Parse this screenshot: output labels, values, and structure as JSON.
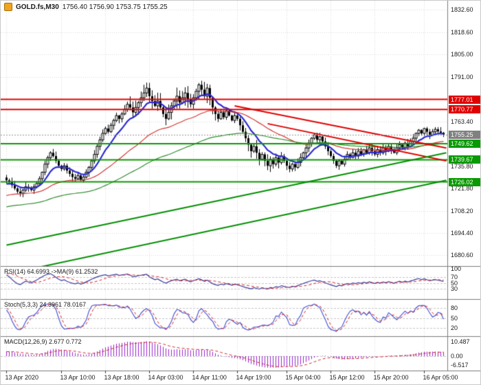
{
  "window": {
    "symbol": "GOLD.fs,M30",
    "ohlc_text": "1756.40 1756.90 1753.75 1755.25"
  },
  "chart_data": {
    "type": "candlestick",
    "title": "GOLD.fs,M30",
    "timeframe_minutes": 30,
    "current": {
      "open": 1756.4,
      "high": 1756.9,
      "low": 1753.75,
      "close": 1755.25
    },
    "layout_hints": {
      "background": "#ffffff",
      "grid": "dotted",
      "bar_spacing_px": 4,
      "legend_position": "top-left"
    },
    "price_axis": {
      "range": [
        1674,
        1838
      ],
      "ticks": [
        1832.6,
        1818.6,
        1805.0,
        1791.0,
        1763.4,
        1735.8,
        1721.8,
        1708.2,
        1694.4,
        1680.6
      ]
    },
    "levels": {
      "resistance": [
        {
          "price": 1777.01,
          "color": "#e00000"
        },
        {
          "price": 1770.77,
          "color": "#e00000"
        }
      ],
      "support": [
        {
          "price": 1749.62,
          "color": "#089a00"
        },
        {
          "price": 1739.67,
          "color": "#089a00"
        },
        {
          "price": 1726.02,
          "color": "#089a00"
        }
      ],
      "current_price": {
        "price": 1755.25,
        "color": "#808080"
      }
    },
    "trendlines": [
      {
        "color": "#e00000",
        "width": 2,
        "from": {
          "bar": 83,
          "price": 1773
        },
        "to": {
          "bar": 160,
          "price": 1747
        }
      },
      {
        "color": "#e00000",
        "width": 2,
        "from": {
          "bar": 95,
          "price": 1762
        },
        "to": {
          "bar": 160,
          "price": 1739
        }
      },
      {
        "color": "#008f00",
        "width": 2,
        "from": {
          "bar": 0,
          "price": 1687
        },
        "to": {
          "bar": 160,
          "price": 1744
        }
      },
      {
        "color": "#008f00",
        "width": 2,
        "from": {
          "bar": 0,
          "price": 1669
        },
        "to": {
          "bar": 160,
          "price": 1727
        }
      }
    ],
    "closes": [
      1727,
      1726,
      1724,
      1722,
      1720,
      1719,
      1721,
      1723,
      1722,
      1721,
      1723,
      1725,
      1728,
      1732,
      1737,
      1741,
      1744,
      1742,
      1739,
      1736,
      1734,
      1736,
      1733,
      1731,
      1729,
      1728,
      1730,
      1727,
      1729,
      1732,
      1735,
      1739,
      1743,
      1748,
      1752,
      1756,
      1759,
      1757,
      1761,
      1764,
      1767,
      1765,
      1768,
      1771,
      1774,
      1772,
      1769,
      1772,
      1775,
      1778,
      1781,
      1784,
      1779,
      1776,
      1773,
      1776,
      1772,
      1768,
      1765,
      1769,
      1773,
      1776,
      1779,
      1775,
      1778,
      1781,
      1777,
      1774,
      1778,
      1782,
      1786,
      1783,
      1779,
      1784,
      1778,
      1772,
      1768,
      1765,
      1769,
      1766,
      1770,
      1767,
      1764,
      1767,
      1765,
      1761,
      1757,
      1753,
      1749,
      1745,
      1748,
      1744,
      1740,
      1743,
      1739,
      1736,
      1740,
      1737,
      1741,
      1738,
      1742,
      1739,
      1736,
      1734,
      1737,
      1735,
      1738,
      1741,
      1744,
      1747,
      1750,
      1753,
      1755,
      1752,
      1754,
      1751,
      1748,
      1745,
      1742,
      1739,
      1736,
      1739,
      1737,
      1740,
      1743,
      1741,
      1744,
      1742,
      1745,
      1743,
      1746,
      1744,
      1747,
      1745,
      1743,
      1746,
      1744,
      1747,
      1745,
      1748,
      1746,
      1744,
      1747,
      1749,
      1747,
      1750,
      1748,
      1751,
      1753,
      1756,
      1758,
      1756,
      1759,
      1757,
      1755,
      1757,
      1758.5,
      1757.2,
      1756.4,
      1755.25
    ],
    "moving_averages": [
      {
        "period": 10,
        "color": "#2a2ad2",
        "width": 2.2
      },
      {
        "period": 40,
        "color": "#d23333",
        "width": 1.2
      },
      {
        "period": 90,
        "color": "#2e8b2e",
        "width": 1.2
      }
    ],
    "time_axis": [
      {
        "text": "13 Apr 2020",
        "bar": 0
      },
      {
        "text": "13 Apr 10:00",
        "bar": 20
      },
      {
        "text": "13 Apr 18:00",
        "bar": 36
      },
      {
        "text": "14 Apr 03:00",
        "bar": 52
      },
      {
        "text": "14 Apr 11:00",
        "bar": 68
      },
      {
        "text": "14 Apr 19:00",
        "bar": 84
      },
      {
        "text": "15 Apr 04:00",
        "bar": 102
      },
      {
        "text": "15 Apr 12:00",
        "bar": 118
      },
      {
        "text": "15 Apr 20:00",
        "bar": 134
      },
      {
        "text": "16 Apr 05:00",
        "bar": 152
      }
    ],
    "indicators": {
      "rsi": {
        "label": "RSI(14) 64.6993  ->MA(9) 61.2532",
        "period": 14,
        "ma_period": 9,
        "value": 64.6993,
        "ma_value": 61.2532,
        "axis_labels": [
          100,
          70,
          50,
          30
        ],
        "levels": [
          70,
          50,
          30
        ],
        "line_color": "#3a3a9e",
        "signal_color": "#d02020"
      },
      "stochastic": {
        "label": "Stoch(5,3,3) 24.3961 78.0167",
        "k": 5,
        "d": 3,
        "slowing": 3,
        "value": 24.3961,
        "signal": 78.0167,
        "axis_labels": [
          80,
          50,
          20
        ],
        "levels": [
          80,
          50,
          20
        ],
        "line_color": "#4a56d6",
        "signal_color": "#d02020"
      },
      "macd": {
        "label": "MACD(12,26,9) 2.677 0.772",
        "fast": 12,
        "slow": 26,
        "signal_period": 9,
        "value": 2.677,
        "signal": 0.772,
        "axis_labels": [
          {
            "v": 10.487,
            "text": "10.487"
          },
          {
            "v": 0,
            "text": "0.00"
          },
          {
            "v": -6.517,
            "text": "-6.517"
          }
        ],
        "hist_color": "#9922cc",
        "signal_color": "#d02020",
        "value_range": [
          -8.5,
          12
        ]
      }
    }
  }
}
